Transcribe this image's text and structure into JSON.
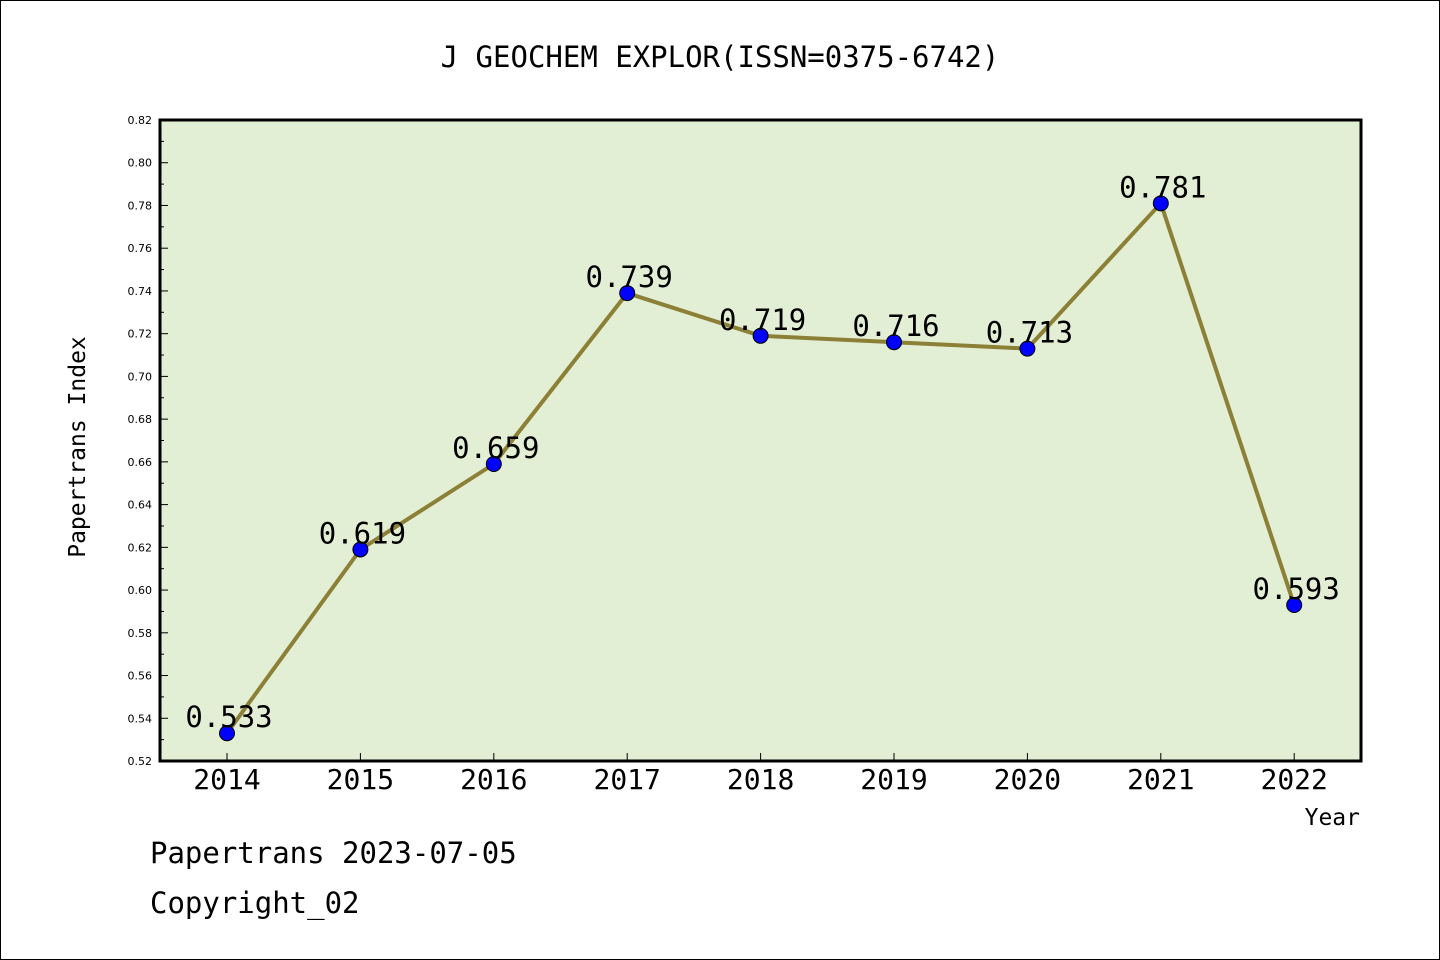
{
  "chart_data": {
    "type": "line",
    "title": "J GEOCHEM EXPLOR(ISSN=0375-6742)",
    "xlabel": "Year",
    "ylabel": "Papertrans Index",
    "categories": [
      "2014",
      "2015",
      "2016",
      "2017",
      "2018",
      "2019",
      "2020",
      "2021",
      "2022"
    ],
    "series": [
      {
        "values": [
          0.533,
          0.619,
          0.659,
          0.739,
          0.719,
          0.716,
          0.713,
          0.781,
          0.593
        ]
      }
    ],
    "data_labels": [
      "0.533",
      "0.619",
      "0.659",
      "0.739",
      "0.719",
      "0.716",
      "0.713",
      "0.781",
      "0.593"
    ],
    "ylim": [
      0.52,
      0.82
    ],
    "yticks": [
      "0.52",
      "0.54",
      "0.56",
      "0.58",
      "0.60",
      "0.62",
      "0.64",
      "0.66",
      "0.68",
      "0.70",
      "0.72",
      "0.74",
      "0.76",
      "0.78",
      "0.80",
      "0.82"
    ],
    "grid": false,
    "colors": {
      "plot_bg": "#e2efd4",
      "line": "#8c7f36",
      "marker": "#0000ff"
    }
  },
  "footer": {
    "line1": "Papertrans 2023-07-05",
    "line2": "Copyright_02"
  }
}
